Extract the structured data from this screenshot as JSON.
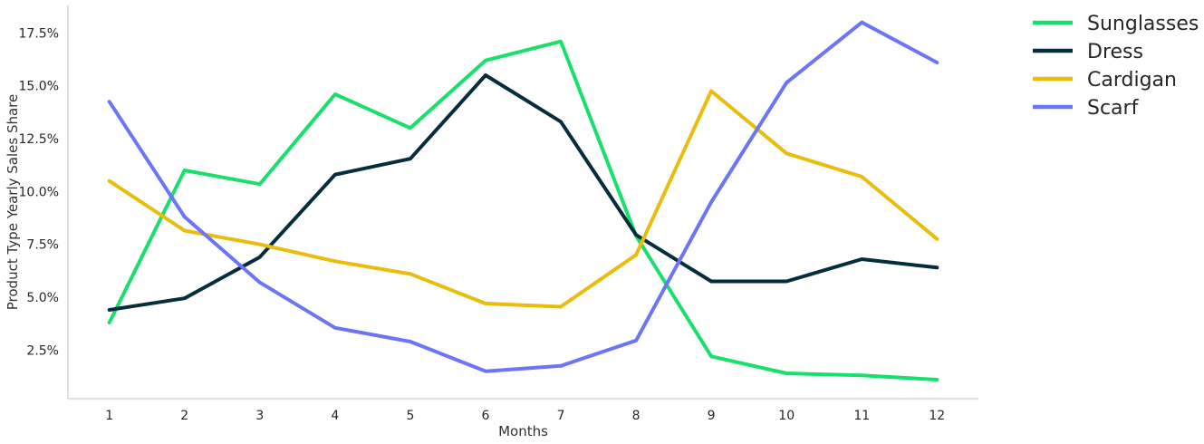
{
  "chart_data": {
    "type": "line",
    "x": [
      1,
      2,
      3,
      4,
      5,
      6,
      7,
      8,
      9,
      10,
      11,
      12
    ],
    "x_tick_labels": [
      "1",
      "2",
      "3",
      "4",
      "5",
      "6",
      "7",
      "8",
      "9",
      "10",
      "11",
      "12"
    ],
    "y_ticks": [
      2.5,
      5.0,
      7.5,
      10.0,
      12.5,
      15.0,
      17.5
    ],
    "y_tick_labels": [
      "2.5%",
      "5.0%",
      "7.5%",
      "10.0%",
      "12.5%",
      "15.0%",
      "17.5%"
    ],
    "xlabel": "Months",
    "ylabel": "Product Type Yearly Sales Share",
    "xlim": [
      0.45,
      12.55
    ],
    "ylim": [
      0.2,
      18.8
    ],
    "grid": false,
    "legend_position": "outside-top-right",
    "series": [
      {
        "name": "Sunglasses",
        "color": "#19e06c",
        "values": [
          3.8,
          11.0,
          10.35,
          14.6,
          13.0,
          16.2,
          17.1,
          7.9,
          2.2,
          1.4,
          1.3,
          1.1
        ]
      },
      {
        "name": "Dress",
        "color": "#052d3e",
        "values": [
          4.4,
          4.95,
          6.9,
          10.8,
          11.55,
          15.5,
          13.3,
          7.95,
          5.75,
          5.75,
          6.8,
          6.4
        ]
      },
      {
        "name": "Cardigan",
        "color": "#eabc0c",
        "values": [
          10.5,
          8.15,
          7.5,
          6.7,
          6.1,
          4.7,
          4.55,
          7.0,
          14.75,
          11.8,
          10.7,
          7.75
        ]
      },
      {
        "name": "Scarf",
        "color": "#6b75f5",
        "values": [
          14.25,
          8.8,
          5.7,
          3.55,
          2.9,
          1.5,
          1.75,
          2.95,
          9.5,
          15.15,
          18.0,
          16.1
        ]
      }
    ]
  }
}
